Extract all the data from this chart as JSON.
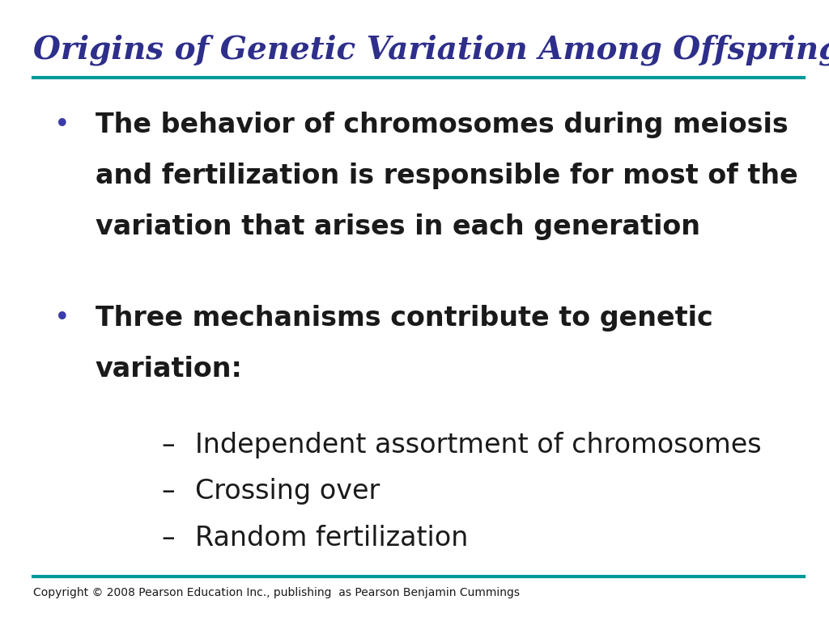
{
  "title": "Origins of Genetic Variation Among Offspring",
  "title_color": "#2E2E8B",
  "title_fontsize": 28,
  "separator_color": "#009999",
  "bg_color": "#FFFFFF",
  "bullet_color": "#3B3BAA",
  "text_color": "#1A1A1A",
  "bullet1_line1": "The behavior of chromosomes during meiosis",
  "bullet1_line2": "and fertilization is responsible for most of the",
  "bullet1_line3": "variation that arises in each generation",
  "bullet2_line1": "Three mechanisms contribute to genetic",
  "bullet2_line2": "variation:",
  "sub1": "Independent assortment of chromosomes",
  "sub2": "Crossing over",
  "sub3": "Random fertilization",
  "copyright": "Copyright © 2008 Pearson Education Inc., publishing  as Pearson Benjamin Cummings",
  "body_fontsize": 24,
  "sub_fontsize": 24,
  "copyright_fontsize": 10
}
